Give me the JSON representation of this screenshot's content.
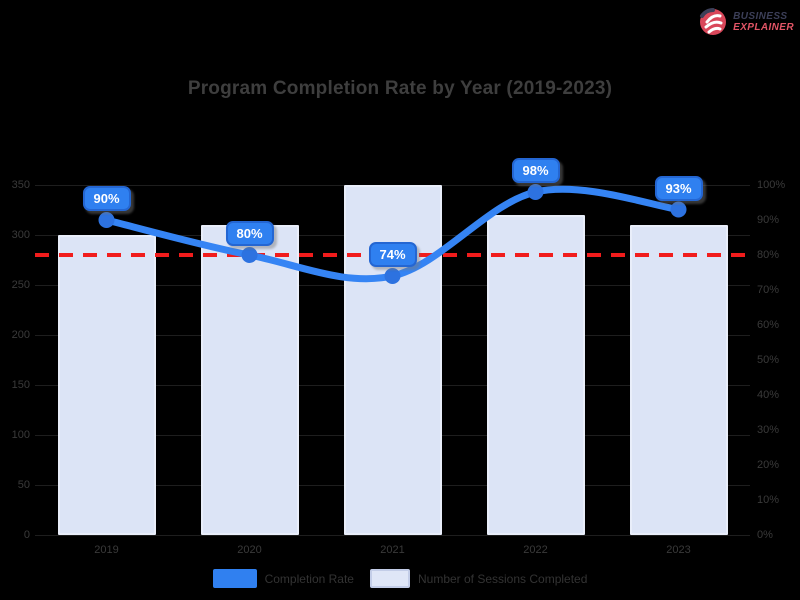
{
  "logo": {
    "line1": "BUSINESS",
    "line2": "EXPLAINER"
  },
  "chart_data": {
    "type": "bar+line combo",
    "title": "Program Completion Rate by Year (2019-2023)",
    "categories": [
      "2019",
      "2020",
      "2021",
      "2022",
      "2023"
    ],
    "series": [
      {
        "name": "Completion Rate",
        "type": "line",
        "axis": "right",
        "color": "#3584f4",
        "values": [
          90,
          80,
          74,
          98,
          93
        ],
        "point_labels": [
          "90%",
          "80%",
          "74%",
          "98%",
          "93%"
        ]
      },
      {
        "name": "Number of Sessions Completed",
        "type": "bar",
        "axis": "left",
        "color": "#dce4f6",
        "values": [
          300,
          310,
          350,
          320,
          310
        ]
      }
    ],
    "target_line": {
      "axis": "right",
      "value": 80,
      "color": "#f11c1c",
      "style": "dashed"
    },
    "axes": {
      "left": {
        "min": 0,
        "max": 350,
        "tick_step": 50,
        "tick_labels": [
          "350",
          "300",
          "250",
          "200",
          "150",
          "100",
          "50",
          "0"
        ]
      },
      "right": {
        "min": 0,
        "max": 100,
        "tick_step": 10,
        "tick_labels": [
          "100%",
          "90%",
          "80%",
          "70%",
          "60%",
          "50%",
          "40%",
          "30%",
          "20%",
          "10%",
          "0%"
        ]
      }
    },
    "legend_position": "bottom",
    "grid": true,
    "background": "#000000"
  }
}
